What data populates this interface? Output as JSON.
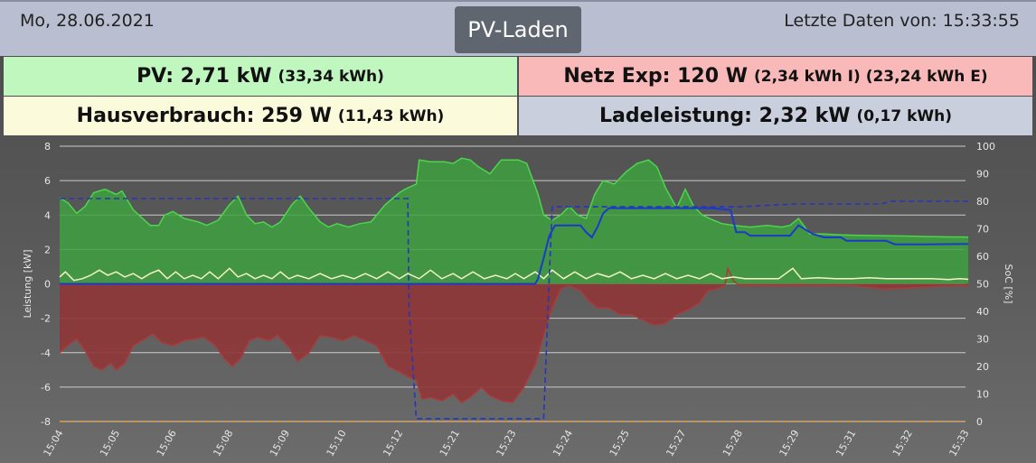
{
  "header": {
    "date": "Mo, 28.06.2021",
    "title": "PV-Laden",
    "last_data": "Letzte Daten von: 15:33:55"
  },
  "tiles": {
    "pv": {
      "main": "PV: 2,71 kW",
      "sub": "(33,34 kWh)"
    },
    "netz": {
      "main": "Netz Exp: 120 W",
      "sub": "(2,34 kWh I) (23,24 kWh E)"
    },
    "haus": {
      "main": "Hausverbrauch: 259 W",
      "sub": "(11,43 kWh)"
    },
    "lade": {
      "main": "Ladeleistung: 2,32 kW",
      "sub": "(0,17 kWh)"
    }
  },
  "colors": {
    "pv_fill": "#3ea03e",
    "pv_line": "#4cd64c",
    "grid_fill": "#8e3737",
    "grid_line": "#a83c3c",
    "house_line": "#f4f4c8",
    "charge_line": "#1a3acc",
    "soc_line": "#2835b8",
    "zero_line": "#e8a040"
  },
  "chart_data": {
    "type": "area",
    "ylabel": "Leistung [kW]",
    "y2label": "SoC [%]",
    "ylim": [
      -8,
      8
    ],
    "yticks": [
      -8,
      -6,
      -4,
      -2,
      0,
      2,
      4,
      6,
      8
    ],
    "y2lim": [
      0,
      100
    ],
    "y2ticks": [
      0,
      10,
      20,
      30,
      40,
      50,
      60,
      70,
      80,
      90,
      100
    ],
    "grid": true,
    "xticks": [
      "15:04",
      "15:05",
      "15:06",
      "15:08",
      "15:09",
      "15:10",
      "15:12",
      "15:21",
      "15:23",
      "15:24",
      "15:25",
      "15:27",
      "15:28",
      "15:29",
      "15:31",
      "15:32",
      "15:33"
    ],
    "series": [
      {
        "name": "PV",
        "unit": "kW",
        "points": [
          [
            0,
            5.0
          ],
          [
            0.15,
            4.7
          ],
          [
            0.3,
            4.1
          ],
          [
            0.45,
            4.5
          ],
          [
            0.6,
            5.3
          ],
          [
            0.8,
            5.5
          ],
          [
            1.0,
            5.2
          ],
          [
            1.1,
            5.4
          ],
          [
            1.3,
            4.3
          ],
          [
            1.5,
            3.7
          ],
          [
            1.6,
            3.4
          ],
          [
            1.75,
            3.4
          ],
          [
            1.85,
            4.0
          ],
          [
            2.0,
            4.2
          ],
          [
            2.2,
            3.8
          ],
          [
            2.45,
            3.6
          ],
          [
            2.6,
            3.4
          ],
          [
            2.8,
            3.7
          ],
          [
            3.0,
            4.6
          ],
          [
            3.15,
            5.1
          ],
          [
            3.3,
            4.0
          ],
          [
            3.45,
            3.5
          ],
          [
            3.6,
            3.6
          ],
          [
            3.75,
            3.3
          ],
          [
            3.9,
            3.6
          ],
          [
            4.1,
            4.6
          ],
          [
            4.25,
            5.1
          ],
          [
            4.4,
            4.4
          ],
          [
            4.6,
            3.6
          ],
          [
            4.75,
            3.3
          ],
          [
            4.9,
            3.5
          ],
          [
            5.1,
            3.3
          ],
          [
            5.3,
            3.5
          ],
          [
            5.5,
            3.6
          ],
          [
            5.75,
            4.6
          ],
          [
            6.0,
            5.3
          ],
          [
            6.1,
            5.5
          ],
          [
            6.3,
            5.8
          ],
          [
            6.35,
            7.2
          ],
          [
            6.55,
            7.1
          ],
          [
            6.8,
            7.1
          ],
          [
            6.95,
            7.0
          ],
          [
            7.1,
            7.3
          ],
          [
            7.25,
            7.2
          ],
          [
            7.4,
            6.8
          ],
          [
            7.6,
            6.4
          ],
          [
            7.8,
            7.2
          ],
          [
            8.1,
            7.2
          ],
          [
            8.25,
            7.0
          ],
          [
            8.45,
            5.2
          ],
          [
            8.55,
            4.0
          ],
          [
            8.7,
            3.7
          ],
          [
            8.85,
            4.0
          ],
          [
            9.0,
            4.5
          ],
          [
            9.15,
            4.0
          ],
          [
            9.3,
            3.8
          ],
          [
            9.45,
            5.2
          ],
          [
            9.6,
            6.0
          ],
          [
            9.8,
            5.8
          ],
          [
            10.0,
            6.5
          ],
          [
            10.2,
            7.0
          ],
          [
            10.4,
            7.2
          ],
          [
            10.55,
            6.8
          ],
          [
            10.7,
            5.6
          ],
          [
            10.9,
            4.4
          ],
          [
            11.05,
            5.5
          ],
          [
            11.2,
            4.5
          ],
          [
            11.35,
            4.0
          ],
          [
            11.55,
            3.7
          ],
          [
            11.7,
            3.5
          ],
          [
            11.9,
            3.4
          ],
          [
            12.2,
            3.3
          ],
          [
            12.5,
            3.4
          ],
          [
            12.75,
            3.3
          ],
          [
            12.9,
            3.4
          ],
          [
            13.05,
            3.8
          ],
          [
            13.25,
            2.9
          ],
          [
            13.5,
            2.9
          ],
          [
            13.8,
            2.85
          ],
          [
            14.1,
            2.82
          ],
          [
            14.5,
            2.8
          ],
          [
            14.9,
            2.78
          ],
          [
            15.3,
            2.75
          ],
          [
            15.7,
            2.73
          ],
          [
            16.0,
            2.72
          ],
          [
            16.05,
            2.71
          ]
        ]
      },
      {
        "name": "Netz",
        "unit": "kW",
        "points": [
          [
            0,
            -4.0
          ],
          [
            0.1,
            -3.7
          ],
          [
            0.3,
            -3.2
          ],
          [
            0.45,
            -3.9
          ],
          [
            0.6,
            -4.8
          ],
          [
            0.75,
            -5.0
          ],
          [
            0.9,
            -4.6
          ],
          [
            1.0,
            -5.0
          ],
          [
            1.15,
            -4.6
          ],
          [
            1.3,
            -3.6
          ],
          [
            1.5,
            -3.2
          ],
          [
            1.65,
            -2.9
          ],
          [
            1.8,
            -3.4
          ],
          [
            2.0,
            -3.6
          ],
          [
            2.2,
            -3.3
          ],
          [
            2.4,
            -3.2
          ],
          [
            2.55,
            -3.1
          ],
          [
            2.75,
            -3.6
          ],
          [
            2.9,
            -4.3
          ],
          [
            3.05,
            -4.8
          ],
          [
            3.2,
            -4.3
          ],
          [
            3.35,
            -3.3
          ],
          [
            3.5,
            -3.1
          ],
          [
            3.7,
            -3.3
          ],
          [
            3.85,
            -3.0
          ],
          [
            4.05,
            -3.7
          ],
          [
            4.2,
            -4.5
          ],
          [
            4.4,
            -4.0
          ],
          [
            4.6,
            -3.0
          ],
          [
            4.8,
            -3.1
          ],
          [
            5.0,
            -3.3
          ],
          [
            5.2,
            -3.0
          ],
          [
            5.4,
            -3.3
          ],
          [
            5.6,
            -3.6
          ],
          [
            5.8,
            -4.8
          ],
          [
            6.0,
            -5.1
          ],
          [
            6.15,
            -5.4
          ],
          [
            6.3,
            -5.6
          ],
          [
            6.4,
            -6.7
          ],
          [
            6.55,
            -6.6
          ],
          [
            6.75,
            -6.8
          ],
          [
            6.95,
            -6.4
          ],
          [
            7.1,
            -6.9
          ],
          [
            7.25,
            -6.6
          ],
          [
            7.45,
            -6.0
          ],
          [
            7.6,
            -6.5
          ],
          [
            7.8,
            -6.8
          ],
          [
            8.0,
            -6.9
          ],
          [
            8.2,
            -6.0
          ],
          [
            8.4,
            -4.7
          ],
          [
            8.55,
            -3.0
          ],
          [
            8.7,
            -1.4
          ],
          [
            8.85,
            -0.3
          ],
          [
            9.0,
            -0.1
          ],
          [
            9.2,
            -0.4
          ],
          [
            9.35,
            -1.0
          ],
          [
            9.5,
            -1.4
          ],
          [
            9.7,
            -1.4
          ],
          [
            9.9,
            -1.8
          ],
          [
            10.1,
            -1.8
          ],
          [
            10.3,
            -2.1
          ],
          [
            10.5,
            -2.4
          ],
          [
            10.7,
            -2.3
          ],
          [
            10.9,
            -1.8
          ],
          [
            11.1,
            -1.5
          ],
          [
            11.3,
            -1.1
          ],
          [
            11.45,
            -0.4
          ],
          [
            11.6,
            -0.3
          ],
          [
            11.75,
            -0.1
          ],
          [
            11.8,
            0.9
          ],
          [
            11.9,
            0.2
          ],
          [
            12.0,
            -0.1
          ],
          [
            12.5,
            -0.1
          ],
          [
            13.0,
            -0.1
          ],
          [
            13.5,
            -0.1
          ],
          [
            14.0,
            -0.1
          ],
          [
            14.6,
            -0.3
          ],
          [
            15.2,
            -0.2
          ],
          [
            15.8,
            -0.1
          ],
          [
            16.05,
            -0.12
          ]
        ]
      },
      {
        "name": "Hausverbrauch",
        "unit": "kW",
        "points": [
          [
            0,
            0.4
          ],
          [
            0.1,
            0.7
          ],
          [
            0.25,
            0.2
          ],
          [
            0.4,
            0.3
          ],
          [
            0.55,
            0.5
          ],
          [
            0.7,
            0.8
          ],
          [
            0.85,
            0.5
          ],
          [
            1.0,
            0.7
          ],
          [
            1.15,
            0.4
          ],
          [
            1.3,
            0.6
          ],
          [
            1.45,
            0.3
          ],
          [
            1.6,
            0.6
          ],
          [
            1.75,
            0.8
          ],
          [
            1.9,
            0.3
          ],
          [
            2.05,
            0.7
          ],
          [
            2.2,
            0.3
          ],
          [
            2.35,
            0.5
          ],
          [
            2.5,
            0.3
          ],
          [
            2.65,
            0.7
          ],
          [
            2.8,
            0.3
          ],
          [
            3.0,
            0.9
          ],
          [
            3.15,
            0.4
          ],
          [
            3.3,
            0.6
          ],
          [
            3.45,
            0.3
          ],
          [
            3.6,
            0.5
          ],
          [
            3.75,
            0.3
          ],
          [
            3.9,
            0.7
          ],
          [
            4.05,
            0.3
          ],
          [
            4.2,
            0.5
          ],
          [
            4.4,
            0.3
          ],
          [
            4.6,
            0.6
          ],
          [
            4.8,
            0.3
          ],
          [
            5.0,
            0.5
          ],
          [
            5.2,
            0.3
          ],
          [
            5.4,
            0.6
          ],
          [
            5.6,
            0.3
          ],
          [
            5.8,
            0.7
          ],
          [
            6.0,
            0.3
          ],
          [
            6.15,
            0.6
          ],
          [
            6.35,
            0.3
          ],
          [
            6.55,
            0.8
          ],
          [
            6.75,
            0.3
          ],
          [
            6.95,
            0.6
          ],
          [
            7.1,
            0.3
          ],
          [
            7.3,
            0.7
          ],
          [
            7.5,
            0.3
          ],
          [
            7.7,
            0.5
          ],
          [
            7.9,
            0.3
          ],
          [
            8.05,
            0.6
          ],
          [
            8.2,
            0.3
          ],
          [
            8.4,
            0.7
          ],
          [
            8.55,
            0.3
          ],
          [
            8.7,
            0.8
          ],
          [
            8.9,
            0.3
          ],
          [
            9.1,
            0.7
          ],
          [
            9.3,
            0.3
          ],
          [
            9.5,
            0.6
          ],
          [
            9.7,
            0.4
          ],
          [
            9.9,
            0.7
          ],
          [
            10.1,
            0.3
          ],
          [
            10.3,
            0.5
          ],
          [
            10.5,
            0.3
          ],
          [
            10.7,
            0.6
          ],
          [
            10.9,
            0.3
          ],
          [
            11.1,
            0.5
          ],
          [
            11.3,
            0.3
          ],
          [
            11.5,
            0.6
          ],
          [
            11.7,
            0.3
          ],
          [
            11.9,
            0.4
          ],
          [
            12.1,
            0.3
          ],
          [
            12.4,
            0.3
          ],
          [
            12.7,
            0.3
          ],
          [
            12.95,
            0.9
          ],
          [
            13.1,
            0.3
          ],
          [
            13.4,
            0.35
          ],
          [
            13.7,
            0.3
          ],
          [
            14.0,
            0.3
          ],
          [
            14.3,
            0.35
          ],
          [
            14.6,
            0.3
          ],
          [
            15.0,
            0.3
          ],
          [
            15.4,
            0.3
          ],
          [
            15.7,
            0.25
          ],
          [
            15.9,
            0.3
          ],
          [
            16.05,
            0.26
          ]
        ]
      },
      {
        "name": "Ladeleistung",
        "unit": "kW",
        "points": [
          [
            0,
            0
          ],
          [
            8.4,
            0
          ],
          [
            8.45,
            0.3
          ],
          [
            8.55,
            1.5
          ],
          [
            8.65,
            2.8
          ],
          [
            8.75,
            3.4
          ],
          [
            9.2,
            3.4
          ],
          [
            9.3,
            3.0
          ],
          [
            9.4,
            2.7
          ],
          [
            9.5,
            3.3
          ],
          [
            9.6,
            4.1
          ],
          [
            9.7,
            4.4
          ],
          [
            11.0,
            4.4
          ],
          [
            11.5,
            4.4
          ],
          [
            11.85,
            4.3
          ],
          [
            11.95,
            3.0
          ],
          [
            12.1,
            3.0
          ],
          [
            12.2,
            2.8
          ],
          [
            12.9,
            2.8
          ],
          [
            13.05,
            3.4
          ],
          [
            13.3,
            2.9
          ],
          [
            13.5,
            2.7
          ],
          [
            13.8,
            2.7
          ],
          [
            13.9,
            2.5
          ],
          [
            14.6,
            2.5
          ],
          [
            14.75,
            2.3
          ],
          [
            15.3,
            2.3
          ],
          [
            16.05,
            2.32
          ]
        ]
      },
      {
        "name": "SoC",
        "unit": "%",
        "axis": "right",
        "points": [
          [
            0,
            81
          ],
          [
            6.15,
            81
          ],
          [
            6.17,
            41
          ],
          [
            6.3,
            1
          ],
          [
            8.55,
            1
          ],
          [
            8.6,
            28
          ],
          [
            8.7,
            78
          ],
          [
            12.0,
            78
          ],
          [
            13.0,
            79
          ],
          [
            14.0,
            79
          ],
          [
            14.5,
            79
          ],
          [
            14.7,
            80
          ],
          [
            16.05,
            80
          ]
        ]
      }
    ]
  }
}
